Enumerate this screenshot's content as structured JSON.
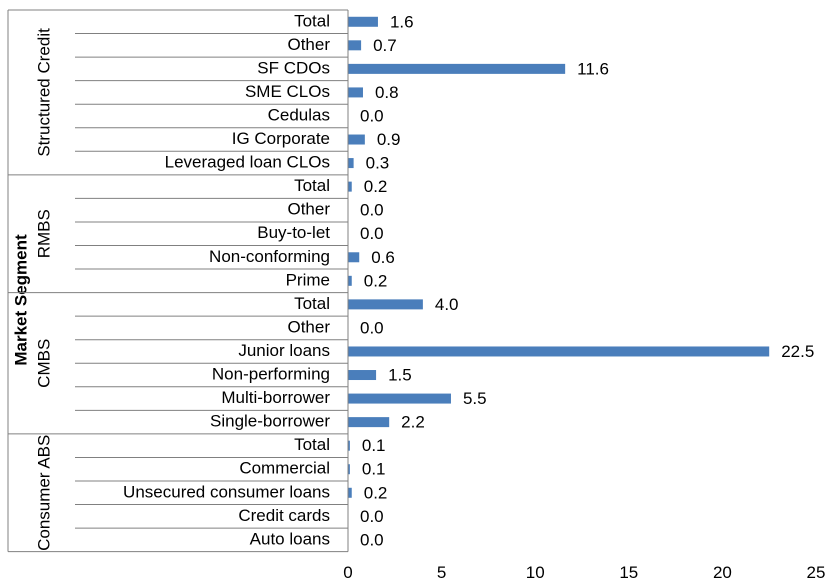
{
  "chart_data": {
    "type": "bar",
    "orientation": "horizontal",
    "color": "#4a7ebb",
    "y_label": "Market Segment",
    "groups": [
      {
        "name": "Structured Credit",
        "categories": [
          "Total",
          "Other",
          "SF CDOs",
          "SME CLOs",
          "Cedulas",
          "IG Corporate",
          "Leveraged loan CLOs"
        ],
        "values": [
          1.6,
          0.7,
          11.6,
          0.8,
          0,
          0.9,
          0.3
        ],
        "value_labels": [
          "1.6",
          "0.7",
          "11.6",
          "0.8",
          "0.0",
          "0.9",
          "0.3"
        ]
      },
      {
        "name": "RMBS",
        "categories": [
          "Total",
          "Other",
          "Buy-to-let",
          "Non-conforming",
          "Prime"
        ],
        "values": [
          0.2,
          0,
          0,
          0.6,
          0.2
        ],
        "value_labels": [
          "0.2",
          "0.0",
          "0.0",
          "0.6",
          "0.2"
        ]
      },
      {
        "name": "CMBS",
        "categories": [
          "Total",
          "Other",
          "Junior loans",
          "Non-performing",
          "Multi-borrower",
          "Single-borrower"
        ],
        "values": [
          4,
          0,
          22.5,
          1.5,
          5.5,
          2.2
        ],
        "value_labels": [
          "4.0",
          "0.0",
          "22.5",
          "1.5",
          "5.5",
          "2.2"
        ]
      },
      {
        "name": "Consumer ABS",
        "categories": [
          "Total",
          "Commercial",
          "Unsecured consumer loans",
          "Credit cards",
          "Auto loans"
        ],
        "values": [
          0.1,
          0.1,
          0.2,
          0,
          0
        ],
        "value_labels": [
          "0.1",
          "0.1",
          "0.2",
          "0.0",
          "0.0"
        ]
      }
    ],
    "xlim": [
      0,
      25
    ],
    "xticks": [
      0,
      5,
      10,
      15,
      20,
      25
    ]
  }
}
